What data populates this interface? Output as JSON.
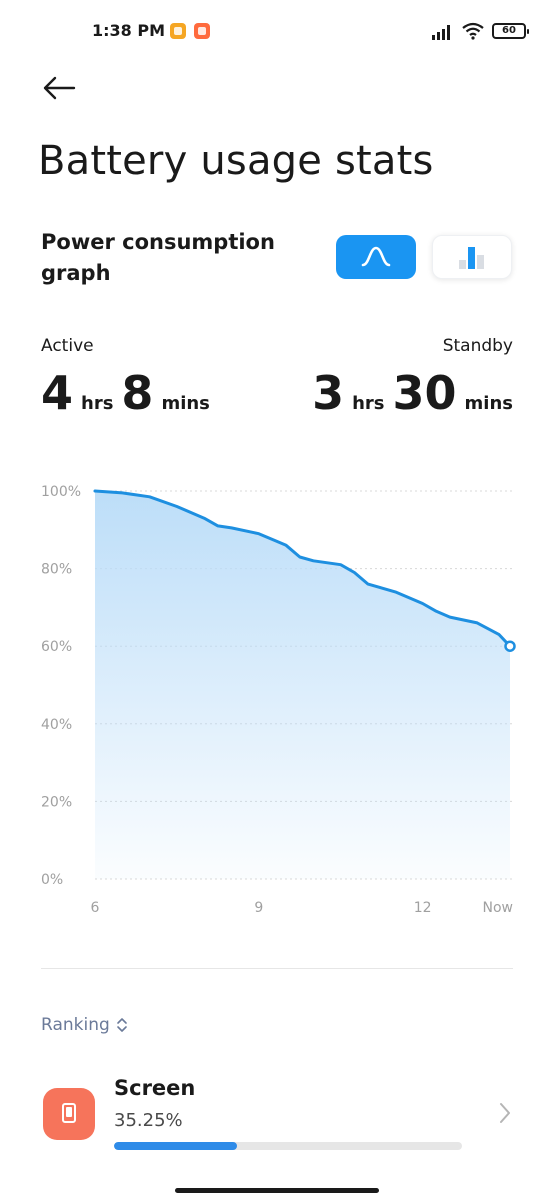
{
  "status_bar": {
    "time": "1:38 PM",
    "battery_level": "60",
    "icons": [
      "notification-app-icon",
      "notification-app-icon",
      "signal-icon",
      "wifi-icon",
      "battery-icon"
    ]
  },
  "header": {
    "back_icon": "arrow-left-icon",
    "title": "Battery usage stats"
  },
  "graph_section": {
    "title": "Power consumption graph",
    "view_toggles": [
      {
        "name": "line-graph",
        "icon": "line-curve-icon",
        "selected": true
      },
      {
        "name": "bar-graph",
        "icon": "bar-chart-icon",
        "selected": false
      }
    ]
  },
  "usage": {
    "active": {
      "label": "Active",
      "hours": "4",
      "hours_unit": "hrs",
      "minutes": "8",
      "minutes_unit": "mins"
    },
    "standby": {
      "label": "Standby",
      "hours": "3",
      "hours_unit": "hrs",
      "minutes": "30",
      "minutes_unit": "mins"
    }
  },
  "colors": {
    "accent": "#1a95f2",
    "line": "#1e8fe0",
    "fill_top": "#b9dcf8",
    "screen_icon": "#f6745b",
    "progress": "#2e8be8",
    "ranking_text": "#6b7a99"
  },
  "chart_data": {
    "type": "area",
    "x": [
      6,
      6.5,
      7,
      7.5,
      8,
      8.25,
      8.5,
      9,
      9.25,
      9.5,
      9.75,
      10,
      10.5,
      10.75,
      11,
      11.5,
      12,
      12.25,
      12.5,
      13,
      13.4,
      13.6
    ],
    "y": [
      100,
      99.5,
      98.5,
      96,
      93,
      91,
      90.5,
      89,
      87.5,
      86,
      83,
      82,
      81,
      79,
      76,
      74,
      71,
      69,
      67.5,
      66,
      63,
      60
    ],
    "x_ticks": [
      6,
      9,
      12
    ],
    "x_tick_labels": [
      "6",
      "9",
      "12",
      "Now"
    ],
    "x_now": 13.6,
    "xlim": [
      6,
      13.6
    ],
    "y_ticks": [
      0,
      20,
      40,
      60,
      80,
      100
    ],
    "y_tick_labels": [
      "0%",
      "20%",
      "40%",
      "60%",
      "80%",
      "100%"
    ],
    "ylim": [
      0,
      100
    ],
    "grid": true,
    "title": "",
    "xlabel": "",
    "ylabel": ""
  },
  "ranking": {
    "label": "Ranking",
    "icon": "sort-updown-icon"
  },
  "apps": [
    {
      "name": "Screen",
      "percent_label": "35.25%",
      "fraction": 0.3525,
      "icon": "screen-icon"
    }
  ]
}
